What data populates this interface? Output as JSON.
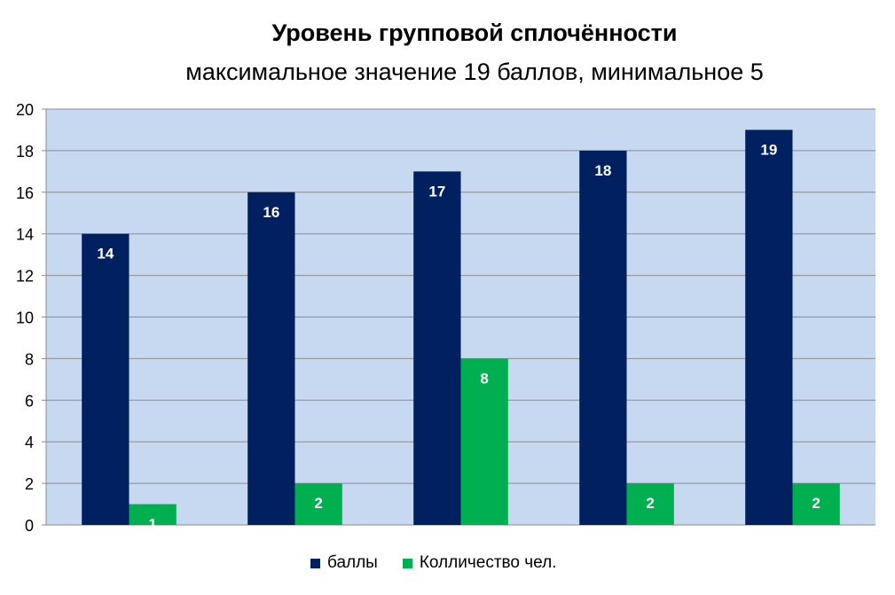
{
  "chart_data": {
    "type": "bar",
    "title": "Уровень групповой сплочённости",
    "subtitle": "максимальное значение 19 баллов, минимальное 5",
    "categories": [
      "",
      "",
      "",
      "",
      ""
    ],
    "series": [
      {
        "name": "баллы",
        "values": [
          14,
          16,
          17,
          18,
          19
        ],
        "color": "#002060"
      },
      {
        "name": "Колличество чел.",
        "values": [
          1,
          2,
          8,
          2,
          2
        ],
        "color": "#00b050"
      }
    ],
    "ylim": [
      0,
      20
    ],
    "yticks": [
      "0",
      "2",
      "4",
      "6",
      "8",
      "10",
      "12",
      "14",
      "16",
      "18",
      "20"
    ],
    "grid": true,
    "plot_background": "#c6d9f1",
    "legend_position": "bottom"
  }
}
